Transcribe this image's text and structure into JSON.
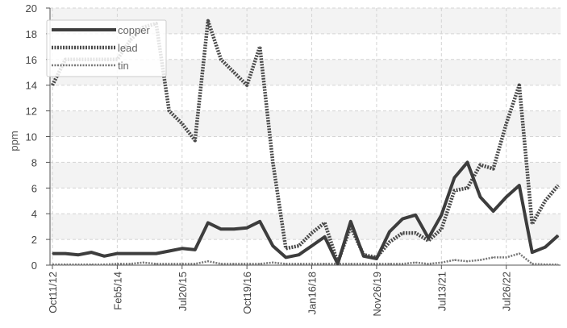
{
  "chart_data": {
    "type": "line",
    "ylabel": "ppm",
    "xlabel": "",
    "ylim": [
      0,
      20
    ],
    "yticks": [
      0,
      2,
      4,
      6,
      8,
      10,
      12,
      14,
      16,
      18,
      20
    ],
    "grid": true,
    "legend_position": "top-left",
    "x_tick_labels": [
      "Oct11/12",
      "Feb5/14",
      "Jul20/15",
      "Oct19/16",
      "Jan16/18",
      "Nov26/19",
      "Jul13/21",
      "Jul26/22"
    ],
    "x_tick_positions": [
      0,
      5,
      10,
      15,
      20,
      25,
      30,
      35
    ],
    "x_count": 40,
    "series": [
      {
        "name": "copper",
        "color": "#3d3d3d",
        "style": "solid",
        "values": [
          0.9,
          0.9,
          0.8,
          1.0,
          0.7,
          0.9,
          0.9,
          0.9,
          0.9,
          1.1,
          1.3,
          1.2,
          3.3,
          2.8,
          2.8,
          2.9,
          3.4,
          1.5,
          0.6,
          0.8,
          1.5,
          2.2,
          0.1,
          3.4,
          0.7,
          0.5,
          2.6,
          3.6,
          3.9,
          2.1,
          3.9,
          6.8,
          8.0,
          5.3,
          4.2,
          5.3,
          6.2,
          1.0,
          1.4,
          2.3
        ]
      },
      {
        "name": "lead",
        "color": "#4a4a4a",
        "style": "dotted",
        "values": [
          14.0,
          16.0,
          16.0,
          16.0,
          16.0,
          16.0,
          17.5,
          18.5,
          18.8,
          12.0,
          11.0,
          9.7,
          19.0,
          16.0,
          15.0,
          14.0,
          17.0,
          8.0,
          1.3,
          1.5,
          2.5,
          3.3,
          0.2,
          3.0,
          0.8,
          0.6,
          1.8,
          2.5,
          2.5,
          1.9,
          2.8,
          5.8,
          6.0,
          7.8,
          7.5,
          11.0,
          14.0,
          3.2,
          5.0,
          6.2
        ]
      },
      {
        "name": "tin",
        "color": "#777777",
        "style": "dotted-thin",
        "values": [
          0.05,
          0.05,
          0.05,
          0.05,
          0.05,
          0.1,
          0.1,
          0.2,
          0.1,
          0.1,
          0.1,
          0.1,
          0.3,
          0.1,
          0.1,
          0.1,
          0.1,
          0.2,
          0.1,
          0.1,
          0.1,
          0.1,
          0.1,
          0.1,
          0.1,
          0.1,
          0.1,
          0.1,
          0.2,
          0.1,
          0.2,
          0.4,
          0.3,
          0.4,
          0.6,
          0.6,
          0.9,
          0.1,
          0.05,
          0.05
        ]
      }
    ]
  }
}
